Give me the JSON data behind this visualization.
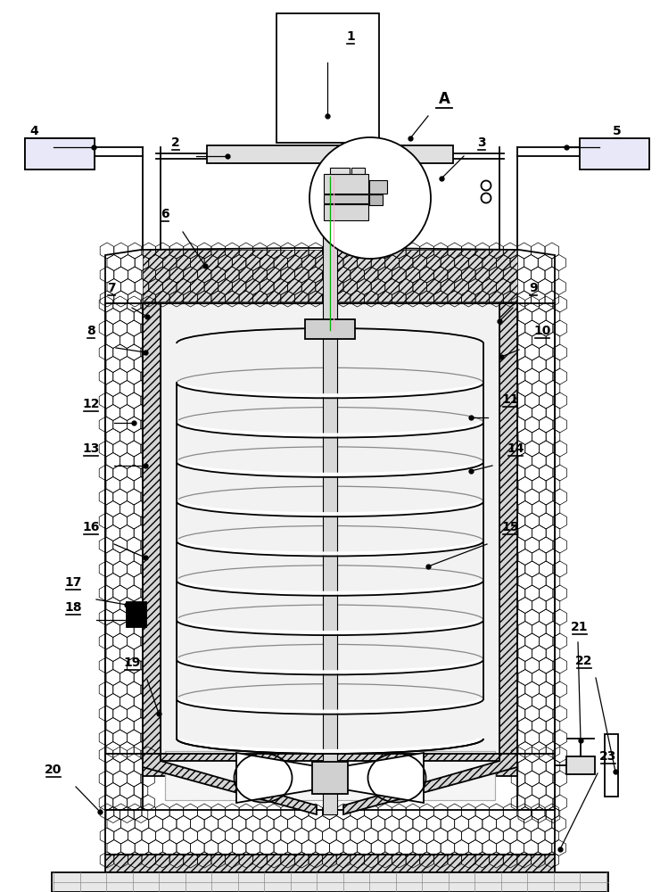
{
  "bg_color": "#ffffff",
  "lc": "#000000",
  "label_underline": [
    "1",
    "2",
    "3",
    "4",
    "5",
    "6",
    "7",
    "8",
    "9",
    "10",
    "11",
    "12",
    "13",
    "14",
    "15",
    "16",
    "17",
    "18",
    "19",
    "20",
    "21",
    "22",
    "23"
  ]
}
